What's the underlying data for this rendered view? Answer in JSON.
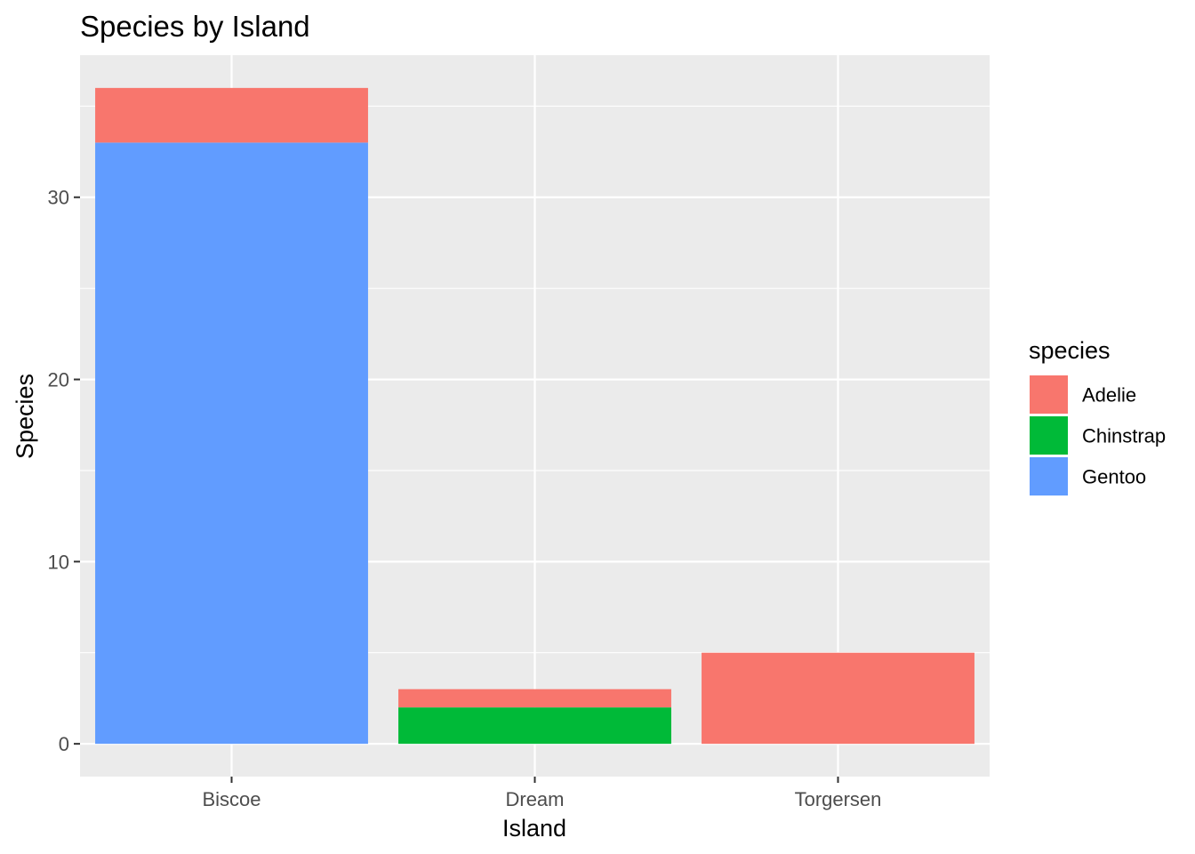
{
  "chart_data": {
    "type": "bar",
    "stacked": true,
    "title": "Species by Island",
    "xlabel": "Island",
    "ylabel": "Species",
    "categories": [
      "Biscoe",
      "Dream",
      "Torgersen"
    ],
    "series": [
      {
        "name": "Adelie",
        "color": "#F8766D",
        "values": [
          3,
          1,
          5
        ]
      },
      {
        "name": "Chinstrap",
        "color": "#00BA38",
        "values": [
          0,
          2,
          0
        ]
      },
      {
        "name": "Gentoo",
        "color": "#619CFF",
        "values": [
          33,
          0,
          0
        ]
      }
    ],
    "stack_order_top_to_bottom": [
      "Adelie",
      "Chinstrap",
      "Gentoo"
    ],
    "yticks": [
      0,
      10,
      20,
      30
    ],
    "ylim": [
      -1.8,
      37.8
    ],
    "grid": true,
    "legend": {
      "title": "species",
      "position": "right"
    },
    "colors": {
      "panel_background": "#EBEBEB",
      "grid_line": "#FFFFFF",
      "tick_text": "#4D4D4D",
      "tick_mark": "#333333"
    }
  }
}
